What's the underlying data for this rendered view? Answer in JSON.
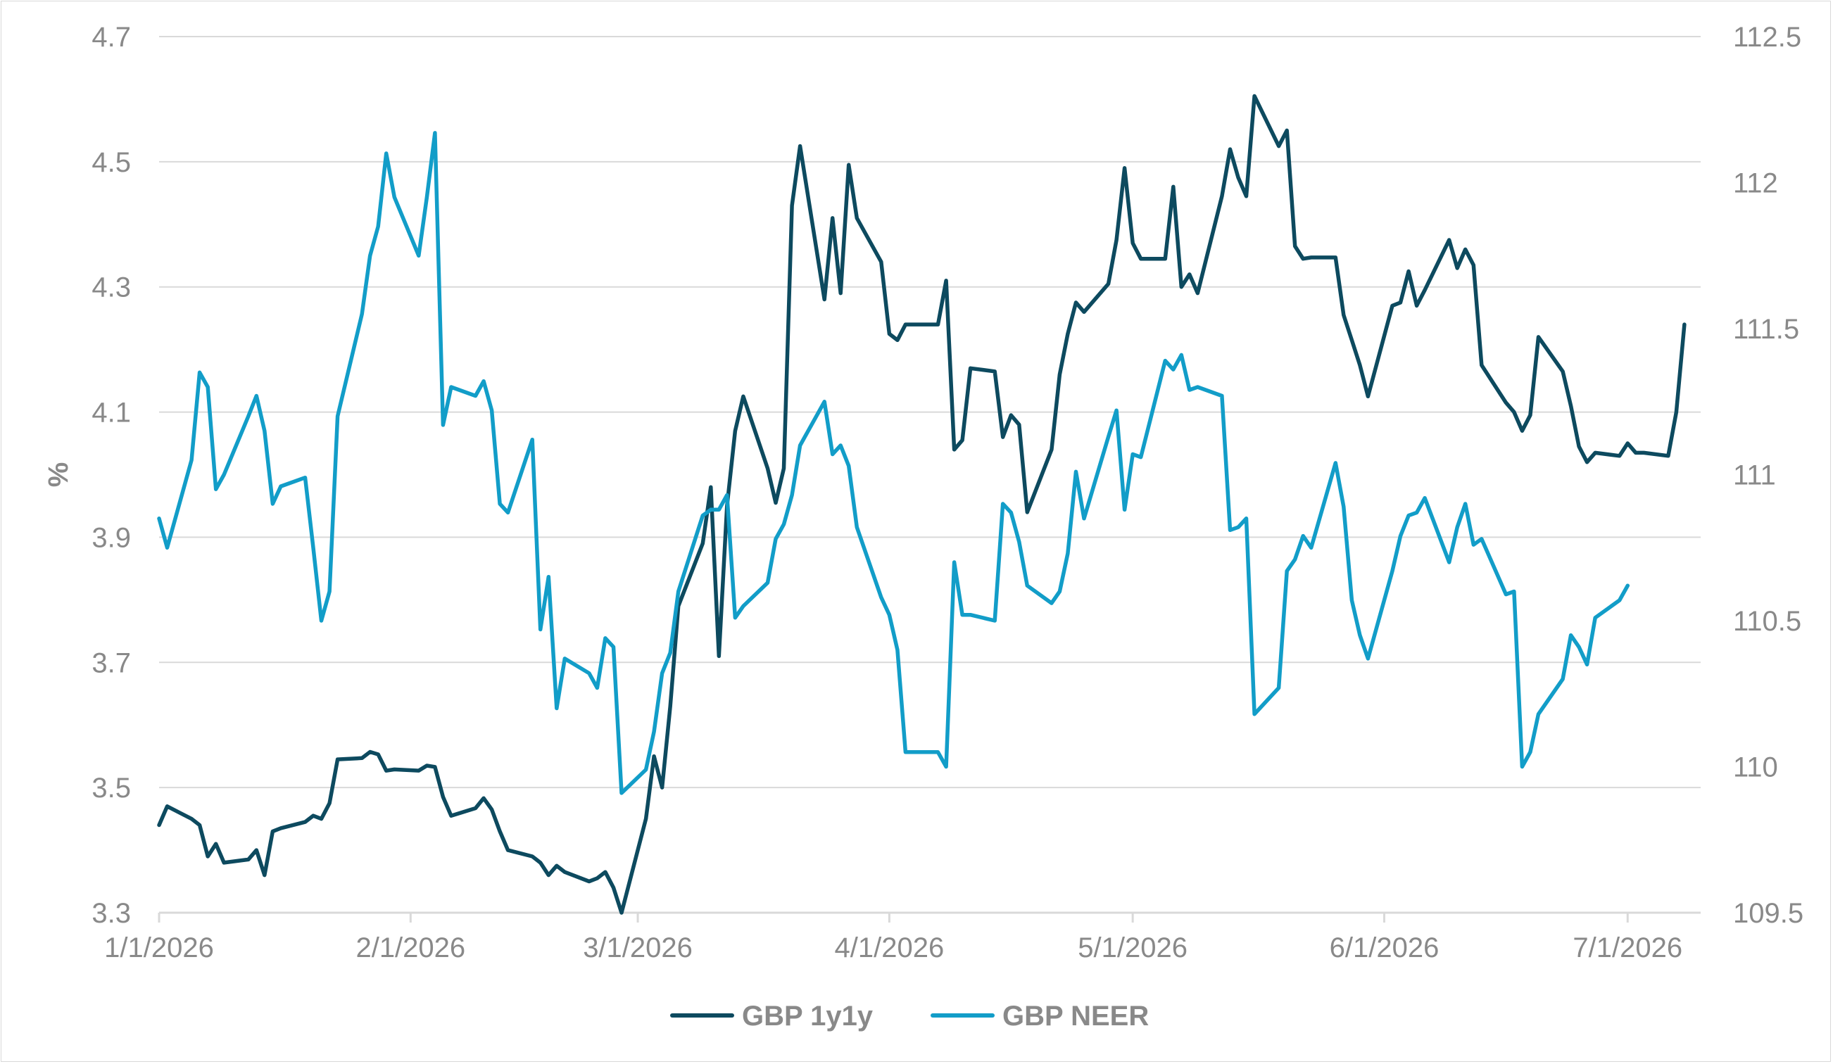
{
  "chart_data": {
    "type": "line",
    "title": "",
    "xlabel": "",
    "ylabel": "%",
    "ylabel_right": "",
    "grid": "horizontal",
    "legend_position": "bottom",
    "ylim": [
      3.3,
      4.7
    ],
    "ylim_right": [
      109.5,
      112.5
    ],
    "xlim": [
      "2026-01-01",
      "2026-07-10"
    ],
    "y_ticks": [
      "3.3",
      "3.5",
      "3.7",
      "3.9",
      "4.1",
      "4.3",
      "4.5",
      "4.7"
    ],
    "y_ticks_right": [
      "109.5",
      "110",
      "110.5",
      "111",
      "111.5",
      "112",
      "112.5"
    ],
    "x_ticks": [
      {
        "date": "2026-01-01",
        "label": "1/1/2026"
      },
      {
        "date": "2026-02-01",
        "label": "2/1/2026"
      },
      {
        "date": "2026-03-01",
        "label": "3/1/2026"
      },
      {
        "date": "2026-04-01",
        "label": "4/1/2026"
      },
      {
        "date": "2026-05-01",
        "label": "5/1/2026"
      },
      {
        "date": "2026-06-01",
        "label": "6/1/2026"
      },
      {
        "date": "2026-07-01",
        "label": "7/1/2026"
      }
    ],
    "series": [
      {
        "name": "GBP 1y1y",
        "axis": "left",
        "color": "#0d4a5f",
        "points": [
          [
            "2026-01-01",
            3.44
          ],
          [
            "2026-01-02",
            3.47
          ],
          [
            "2026-01-05",
            3.45
          ],
          [
            "2026-01-06",
            3.44
          ],
          [
            "2026-01-07",
            3.39
          ],
          [
            "2026-01-08",
            3.41
          ],
          [
            "2026-01-09",
            3.38
          ],
          [
            "2026-01-12",
            3.385
          ],
          [
            "2026-01-13",
            3.4
          ],
          [
            "2026-01-14",
            3.36
          ],
          [
            "2026-01-15",
            3.43
          ],
          [
            "2026-01-16",
            3.435
          ],
          [
            "2026-01-19",
            3.445
          ],
          [
            "2026-01-20",
            3.455
          ],
          [
            "2026-01-21",
            3.45
          ],
          [
            "2026-01-22",
            3.475
          ],
          [
            "2026-01-23",
            3.545
          ],
          [
            "2026-01-26",
            3.547
          ],
          [
            "2026-01-27",
            3.557
          ],
          [
            "2026-01-28",
            3.553
          ],
          [
            "2026-01-29",
            3.527
          ],
          [
            "2026-01-30",
            3.529
          ],
          [
            "2026-02-02",
            3.527
          ],
          [
            "2026-02-03",
            3.535
          ],
          [
            "2026-02-04",
            3.533
          ],
          [
            "2026-02-05",
            3.485
          ],
          [
            "2026-02-06",
            3.455
          ],
          [
            "2026-02-09",
            3.467
          ],
          [
            "2026-02-10",
            3.483
          ],
          [
            "2026-02-11",
            3.465
          ],
          [
            "2026-02-12",
            3.43
          ],
          [
            "2026-02-13",
            3.4
          ],
          [
            "2026-02-16",
            3.39
          ],
          [
            "2026-02-17",
            3.38
          ],
          [
            "2026-02-18",
            3.36
          ],
          [
            "2026-02-19",
            3.375
          ],
          [
            "2026-02-20",
            3.365
          ],
          [
            "2026-02-23",
            3.35
          ],
          [
            "2026-02-24",
            3.355
          ],
          [
            "2026-02-25",
            3.365
          ],
          [
            "2026-02-26",
            3.34
          ],
          [
            "2026-02-27",
            3.3
          ],
          [
            "2026-03-02",
            3.45
          ],
          [
            "2026-03-03",
            3.55
          ],
          [
            "2026-03-04",
            3.5
          ],
          [
            "2026-03-05",
            3.63
          ],
          [
            "2026-03-06",
            3.79
          ],
          [
            "2026-03-09",
            3.89
          ],
          [
            "2026-03-10",
            3.98
          ],
          [
            "2026-03-11",
            3.71
          ],
          [
            "2026-03-12",
            3.95
          ],
          [
            "2026-03-13",
            4.07
          ],
          [
            "2026-03-14",
            4.125
          ],
          [
            "2026-03-17",
            4.01
          ],
          [
            "2026-03-18",
            3.955
          ],
          [
            "2026-03-19",
            4.01
          ],
          [
            "2026-03-20",
            4.43
          ],
          [
            "2026-03-21",
            4.525
          ],
          [
            "2026-03-24",
            4.28
          ],
          [
            "2026-03-25",
            4.41
          ],
          [
            "2026-03-26",
            4.29
          ],
          [
            "2026-03-27",
            4.495
          ],
          [
            "2026-03-28",
            4.41
          ],
          [
            "2026-03-31",
            4.34
          ],
          [
            "2026-04-01",
            4.225
          ],
          [
            "2026-04-02",
            4.215
          ],
          [
            "2026-04-03",
            4.24
          ],
          [
            "2026-04-06",
            4.24
          ],
          [
            "2026-04-07",
            4.24
          ],
          [
            "2026-04-08",
            4.31
          ],
          [
            "2026-04-09",
            4.04
          ],
          [
            "2026-04-10",
            4.055
          ],
          [
            "2026-04-11",
            4.17
          ],
          [
            "2026-04-14",
            4.165
          ],
          [
            "2026-04-15",
            4.06
          ],
          [
            "2026-04-16",
            4.095
          ],
          [
            "2026-04-17",
            4.08
          ],
          [
            "2026-04-18",
            3.94
          ],
          [
            "2026-04-21",
            4.04
          ],
          [
            "2026-04-22",
            4.16
          ],
          [
            "2026-04-23",
            4.225
          ],
          [
            "2026-04-24",
            4.275
          ],
          [
            "2026-04-25",
            4.26
          ],
          [
            "2026-04-28",
            4.305
          ],
          [
            "2026-04-29",
            4.375
          ],
          [
            "2026-04-30",
            4.49
          ],
          [
            "2026-05-01",
            4.37
          ],
          [
            "2026-05-02",
            4.345
          ],
          [
            "2026-05-05",
            4.345
          ],
          [
            "2026-05-06",
            4.46
          ],
          [
            "2026-05-07",
            4.3
          ],
          [
            "2026-05-08",
            4.32
          ],
          [
            "2026-05-09",
            4.29
          ],
          [
            "2026-05-12",
            4.445
          ],
          [
            "2026-05-13",
            4.52
          ],
          [
            "2026-05-14",
            4.475
          ],
          [
            "2026-05-15",
            4.445
          ],
          [
            "2026-05-16",
            4.605
          ],
          [
            "2026-05-19",
            4.525
          ],
          [
            "2026-05-20",
            4.55
          ],
          [
            "2026-05-21",
            4.365
          ],
          [
            "2026-05-22",
            4.345
          ],
          [
            "2026-05-23",
            4.347
          ],
          [
            "2026-05-26",
            4.347
          ],
          [
            "2026-05-27",
            4.255
          ],
          [
            "2026-05-28",
            4.215
          ],
          [
            "2026-05-29",
            4.175
          ],
          [
            "2026-05-30",
            4.125
          ],
          [
            "2026-06-02",
            4.27
          ],
          [
            "2026-06-03",
            4.275
          ],
          [
            "2026-06-04",
            4.325
          ],
          [
            "2026-06-05",
            4.27
          ],
          [
            "2026-06-06",
            4.295
          ],
          [
            "2026-06-09",
            4.375
          ],
          [
            "2026-06-10",
            4.33
          ],
          [
            "2026-06-11",
            4.36
          ],
          [
            "2026-06-12",
            4.335
          ],
          [
            "2026-06-13",
            4.175
          ],
          [
            "2026-06-16",
            4.115
          ],
          [
            "2026-06-17",
            4.1
          ],
          [
            "2026-06-18",
            4.07
          ],
          [
            "2026-06-19",
            4.095
          ],
          [
            "2026-06-20",
            4.22
          ],
          [
            "2026-06-23",
            4.165
          ],
          [
            "2026-06-24",
            4.11
          ],
          [
            "2026-06-25",
            4.045
          ],
          [
            "2026-06-26",
            4.02
          ],
          [
            "2026-06-27",
            4.035
          ],
          [
            "2026-06-30",
            4.03
          ],
          [
            "2026-07-01",
            4.05
          ],
          [
            "2026-07-02",
            4.035
          ],
          [
            "2026-07-03",
            4.035
          ],
          [
            "2026-07-06",
            4.03
          ],
          [
            "2026-07-07",
            4.1
          ],
          [
            "2026-07-08",
            4.24
          ]
        ]
      },
      {
        "name": "GBP NEER",
        "axis": "right",
        "color": "#129dc8",
        "points": [
          [
            "2026-01-01",
            110.85
          ],
          [
            "2026-01-02",
            110.75
          ],
          [
            "2026-01-05",
            111.05
          ],
          [
            "2026-01-06",
            111.35
          ],
          [
            "2026-01-07",
            111.3
          ],
          [
            "2026-01-08",
            110.95
          ],
          [
            "2026-01-09",
            111.0
          ],
          [
            "2026-01-12",
            111.2
          ],
          [
            "2026-01-13",
            111.27
          ],
          [
            "2026-01-14",
            111.15
          ],
          [
            "2026-01-15",
            110.9
          ],
          [
            "2026-01-16",
            110.96
          ],
          [
            "2026-01-19",
            110.99
          ],
          [
            "2026-01-20",
            110.75
          ],
          [
            "2026-01-21",
            110.5
          ],
          [
            "2026-01-22",
            110.6
          ],
          [
            "2026-01-23",
            111.2
          ],
          [
            "2026-01-26",
            111.55
          ],
          [
            "2026-01-27",
            111.75
          ],
          [
            "2026-01-28",
            111.85
          ],
          [
            "2026-01-29",
            112.1
          ],
          [
            "2026-01-30",
            111.95
          ],
          [
            "2026-02-02",
            111.75
          ],
          [
            "2026-02-03",
            111.95
          ],
          [
            "2026-02-04",
            112.17
          ],
          [
            "2026-02-05",
            111.17
          ],
          [
            "2026-02-06",
            111.3
          ],
          [
            "2026-02-09",
            111.27
          ],
          [
            "2026-02-10",
            111.32
          ],
          [
            "2026-02-11",
            111.22
          ],
          [
            "2026-02-12",
            110.9
          ],
          [
            "2026-02-13",
            110.87
          ],
          [
            "2026-02-16",
            111.12
          ],
          [
            "2026-02-17",
            110.47
          ],
          [
            "2026-02-18",
            110.65
          ],
          [
            "2026-02-19",
            110.2
          ],
          [
            "2026-02-20",
            110.37
          ],
          [
            "2026-02-23",
            110.32
          ],
          [
            "2026-02-24",
            110.27
          ],
          [
            "2026-02-25",
            110.44
          ],
          [
            "2026-02-26",
            110.41
          ],
          [
            "2026-02-27",
            109.91
          ],
          [
            "2026-03-02",
            109.99
          ],
          [
            "2026-03-03",
            110.12
          ],
          [
            "2026-03-04",
            110.32
          ],
          [
            "2026-03-05",
            110.39
          ],
          [
            "2026-03-06",
            110.6
          ],
          [
            "2026-03-09",
            110.86
          ],
          [
            "2026-03-10",
            110.88
          ],
          [
            "2026-03-11",
            110.88
          ],
          [
            "2026-03-12",
            110.93
          ],
          [
            "2026-03-13",
            110.51
          ],
          [
            "2026-03-14",
            110.55
          ],
          [
            "2026-03-17",
            110.63
          ],
          [
            "2026-03-18",
            110.78
          ],
          [
            "2026-03-19",
            110.83
          ],
          [
            "2026-03-20",
            110.93
          ],
          [
            "2026-03-21",
            111.1
          ],
          [
            "2026-03-24",
            111.25
          ],
          [
            "2026-03-25",
            111.07
          ],
          [
            "2026-03-26",
            111.1
          ],
          [
            "2026-03-27",
            111.03
          ],
          [
            "2026-03-28",
            110.82
          ],
          [
            "2026-03-31",
            110.58
          ],
          [
            "2026-04-01",
            110.52
          ],
          [
            "2026-04-02",
            110.4
          ],
          [
            "2026-04-03",
            110.05
          ],
          [
            "2026-04-06",
            110.05
          ],
          [
            "2026-04-07",
            110.05
          ],
          [
            "2026-04-08",
            110.0
          ],
          [
            "2026-04-09",
            110.7
          ],
          [
            "2026-04-10",
            110.52
          ],
          [
            "2026-04-11",
            110.52
          ],
          [
            "2026-04-14",
            110.5
          ],
          [
            "2026-04-15",
            110.9
          ],
          [
            "2026-04-16",
            110.87
          ],
          [
            "2026-04-17",
            110.77
          ],
          [
            "2026-04-18",
            110.62
          ],
          [
            "2026-04-21",
            110.56
          ],
          [
            "2026-04-22",
            110.6
          ],
          [
            "2026-04-23",
            110.73
          ],
          [
            "2026-04-24",
            111.01
          ],
          [
            "2026-04-25",
            110.85
          ],
          [
            "2026-04-28",
            111.13
          ],
          [
            "2026-04-29",
            111.22
          ],
          [
            "2026-04-30",
            110.88
          ],
          [
            "2026-05-01",
            111.07
          ],
          [
            "2026-05-02",
            111.06
          ],
          [
            "2026-05-05",
            111.39
          ],
          [
            "2026-05-06",
            111.36
          ],
          [
            "2026-05-07",
            111.41
          ],
          [
            "2026-05-08",
            111.29
          ],
          [
            "2026-05-09",
            111.3
          ],
          [
            "2026-05-12",
            111.27
          ],
          [
            "2026-05-13",
            110.81
          ],
          [
            "2026-05-14",
            110.82
          ],
          [
            "2026-05-15",
            110.85
          ],
          [
            "2026-05-16",
            110.18
          ],
          [
            "2026-05-19",
            110.27
          ],
          [
            "2026-05-20",
            110.67
          ],
          [
            "2026-05-21",
            110.71
          ],
          [
            "2026-05-22",
            110.79
          ],
          [
            "2026-05-23",
            110.75
          ],
          [
            "2026-05-26",
            111.04
          ],
          [
            "2026-05-27",
            110.89
          ],
          [
            "2026-05-28",
            110.57
          ],
          [
            "2026-05-29",
            110.45
          ],
          [
            "2026-05-30",
            110.37
          ],
          [
            "2026-06-02",
            110.67
          ],
          [
            "2026-06-03",
            110.79
          ],
          [
            "2026-06-04",
            110.86
          ],
          [
            "2026-06-05",
            110.87
          ],
          [
            "2026-06-06",
            110.92
          ],
          [
            "2026-06-09",
            110.7
          ],
          [
            "2026-06-10",
            110.82
          ],
          [
            "2026-06-11",
            110.9
          ],
          [
            "2026-06-12",
            110.76
          ],
          [
            "2026-06-13",
            110.78
          ],
          [
            "2026-06-16",
            110.59
          ],
          [
            "2026-06-17",
            110.6
          ],
          [
            "2026-06-18",
            110.0
          ],
          [
            "2026-06-19",
            110.05
          ],
          [
            "2026-06-20",
            110.18
          ],
          [
            "2026-06-23",
            110.3
          ],
          [
            "2026-06-24",
            110.45
          ],
          [
            "2026-06-25",
            110.41
          ],
          [
            "2026-06-26",
            110.35
          ],
          [
            "2026-06-27",
            110.51
          ],
          [
            "2026-06-30",
            110.57
          ],
          [
            "2026-07-01",
            110.62
          ]
        ]
      }
    ]
  }
}
